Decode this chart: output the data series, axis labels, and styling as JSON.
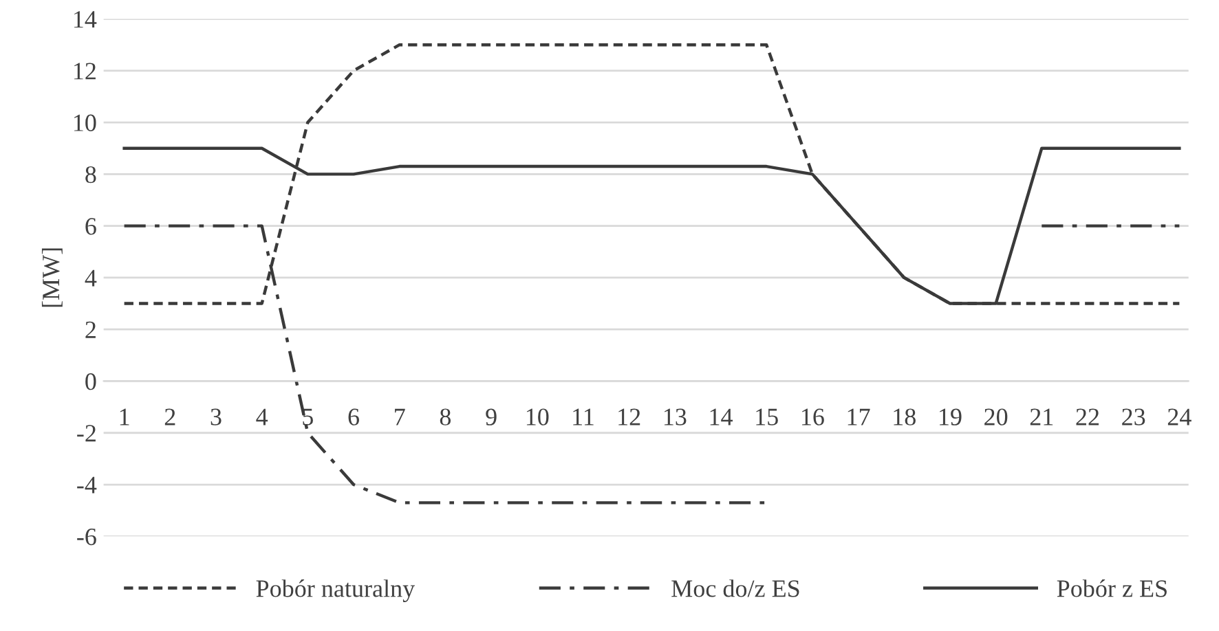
{
  "chart_data": {
    "type": "line",
    "ylabel": "[MW]",
    "categories": [
      "1",
      "2",
      "3",
      "4",
      "5",
      "6",
      "7",
      "8",
      "9",
      "10",
      "11",
      "12",
      "13",
      "14",
      "15",
      "16",
      "17",
      "18",
      "19",
      "20",
      "21",
      "22",
      "23",
      "24"
    ],
    "series": [
      {
        "name": "Pobór naturalny",
        "color": "#3a3a3a",
        "line_style": "dashed",
        "values": [
          3,
          3,
          3,
          3,
          10,
          12,
          13,
          13,
          13,
          13,
          13,
          13,
          13,
          13,
          13,
          8,
          6,
          4,
          3,
          3,
          3,
          3,
          3,
          3
        ]
      },
      {
        "name": "Moc do/z ES",
        "color": "#3a3a3a",
        "line_style": "dashdot",
        "values": [
          6,
          6,
          6,
          6,
          -2,
          -4,
          -4.7,
          -4.7,
          -4.7,
          -4.7,
          -4.7,
          -4.7,
          -4.7,
          -4.7,
          -4.7,
          null,
          null,
          null,
          null,
          null,
          6,
          6,
          6,
          6
        ]
      },
      {
        "name": "Pobór z ES",
        "color": "#3a3a3a",
        "line_style": "solid",
        "values": [
          9,
          9,
          9,
          9,
          8,
          8,
          8.3,
          8.3,
          8.3,
          8.3,
          8.3,
          8.3,
          8.3,
          8.3,
          8.3,
          8,
          6,
          4,
          3,
          3,
          9,
          9,
          9,
          9
        ]
      }
    ],
    "ylim": [
      -6,
      14
    ],
    "yticks": [
      -6,
      -4,
      -2,
      0,
      2,
      4,
      6,
      8,
      10,
      12,
      14
    ],
    "grid": "y",
    "legend": "bottom"
  }
}
